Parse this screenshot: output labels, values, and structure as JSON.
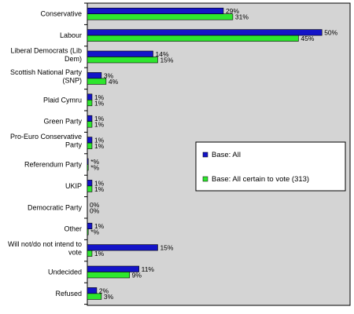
{
  "chart_data": {
    "type": "bar",
    "orientation": "horizontal",
    "grid": false,
    "legend_position": "right",
    "xlim": [
      0,
      56
    ],
    "categories": [
      [
        "Conservative"
      ],
      [
        "Labour"
      ],
      [
        "Liberal Democrats (Lib",
        "Dem)"
      ],
      [
        "Scottish National Party",
        "(SNP)"
      ],
      [
        "Plaid Cymru"
      ],
      [
        "Green Party"
      ],
      [
        "Pro-Euro Conservative",
        "Party"
      ],
      [
        "Referendum Party"
      ],
      [
        "UKIP"
      ],
      [
        "Democratic Party"
      ],
      [
        "Other"
      ],
      [
        "Will not/do not intend to",
        "vote"
      ],
      [
        "Undecided"
      ],
      [
        "Refused"
      ]
    ],
    "series": [
      {
        "name": "Base: All",
        "color": "#1414c8",
        "values": [
          29,
          50,
          14,
          3,
          1,
          1,
          1,
          0.2,
          1,
          0,
          1,
          15,
          11,
          2
        ],
        "labels": [
          "29%",
          "50%",
          "14%",
          "3%",
          "1%",
          "1%",
          "1%",
          "*%",
          "1%",
          "0%",
          "1%",
          "15%",
          "11%",
          "2%"
        ]
      },
      {
        "name": "Base: All certain to vote (313)",
        "color": "#2ee62e",
        "values": [
          31,
          45,
          15,
          4,
          1,
          1,
          1,
          0.2,
          1,
          0,
          0.2,
          1,
          9,
          3
        ],
        "labels": [
          "31%",
          "45%",
          "15%",
          "4%",
          "1%",
          "1%",
          "1%",
          "*%",
          "1%",
          "0%",
          "*%",
          "1%",
          "9%",
          "3%"
        ]
      }
    ]
  }
}
